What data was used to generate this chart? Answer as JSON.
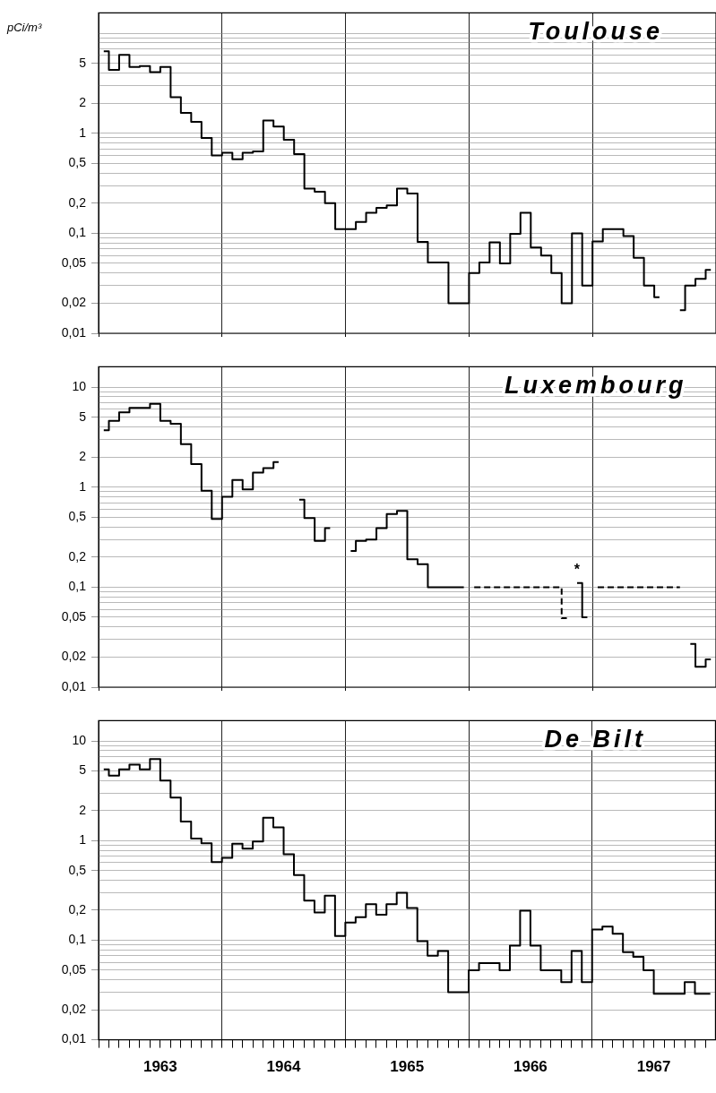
{
  "chart_data": [
    {
      "type": "step",
      "title": "Toulouse",
      "ylabel": "pCi/m³",
      "marker": "none",
      "grid": true,
      "tick_labels": "y",
      "log": true,
      "x": [
        1963.042,
        1963.125,
        1963.208,
        1963.292,
        1963.375,
        1963.458,
        1963.542,
        1963.625,
        1963.708,
        1963.792,
        1963.875,
        1963.958,
        1964.042,
        1964.125,
        1964.208,
        1964.292,
        1964.375,
        1964.458,
        1964.542,
        1964.625,
        1964.708,
        1964.792,
        1964.875,
        1964.958,
        1965.042,
        1965.125,
        1965.208,
        1965.292,
        1965.375,
        1965.458,
        1965.542,
        1965.625,
        1965.708,
        1965.792,
        1965.875,
        1965.958,
        1966.042,
        1966.125,
        1966.208,
        1966.292,
        1966.375,
        1966.458,
        1966.542,
        1966.625,
        1966.708,
        1966.792,
        1966.875,
        1966.958,
        1967.042,
        1967.125,
        1967.208,
        1967.292,
        1967.375,
        1967.458,
        1967.542,
        1967.625,
        1967.708,
        1967.792,
        1967.875,
        1967.958
      ],
      "series": [
        {
          "color": "#000000",
          "values": [
            6.6,
            4.3,
            6.1,
            4.6,
            4.7,
            4.1,
            4.6,
            2.3,
            1.6,
            1.3,
            0.9,
            0.6,
            0.64,
            0.55,
            0.64,
            0.66,
            1.34,
            1.17,
            0.86,
            0.62,
            0.28,
            0.26,
            0.2,
            0.11,
            0.11,
            0.13,
            0.16,
            0.18,
            0.19,
            0.28,
            0.25,
            0.082,
            0.051,
            0.051,
            0.02,
            0.02,
            0.04,
            0.051,
            0.081,
            0.05,
            0.099,
            0.16,
            0.072,
            0.06,
            0.04,
            0.02,
            0.1,
            0.03,
            0.083,
            0.11,
            0.11,
            0.094,
            0.057,
            0.03,
            0.023,
            null,
            0.017,
            0.03,
            0.035,
            0.043
          ]
        }
      ],
      "xlim": [
        1963,
        1968
      ],
      "xticks": [
        {
          "value": 1963,
          "label": null
        },
        {
          "value": 1964,
          "label": null
        },
        {
          "value": 1965,
          "label": null
        },
        {
          "value": 1966,
          "label": null
        },
        {
          "value": 1967,
          "label": null
        }
      ],
      "ylim": [
        0.01,
        16
      ],
      "yticks": [
        {
          "value": 0.01,
          "label": "0,01"
        },
        {
          "value": 0.02,
          "label": "0,02"
        },
        {
          "value": 0.03,
          "label": null
        },
        {
          "value": 0.04,
          "label": null
        },
        {
          "value": 0.05,
          "label": "0,05"
        },
        {
          "value": 0.06,
          "label": null
        },
        {
          "value": 0.07,
          "label": null
        },
        {
          "value": 0.08,
          "label": null
        },
        {
          "value": 0.09,
          "label": null
        },
        {
          "value": 0.1,
          "label": "0,1"
        },
        {
          "value": 0.2,
          "label": "0,2"
        },
        {
          "value": 0.3,
          "label": null
        },
        {
          "value": 0.4,
          "label": null
        },
        {
          "value": 0.5,
          "label": "0,5"
        },
        {
          "value": 0.6,
          "label": null
        },
        {
          "value": 0.7,
          "label": null
        },
        {
          "value": 0.8,
          "label": null
        },
        {
          "value": 0.9,
          "label": null
        },
        1,
        2,
        {
          "value": 3,
          "label": null
        },
        {
          "value": 4,
          "label": null
        },
        5,
        {
          "value": 6,
          "label": null
        },
        {
          "value": 7,
          "label": null
        },
        {
          "value": 8,
          "label": null
        },
        {
          "value": 9,
          "label": null
        },
        {
          "value": 10,
          "label": null
        }
      ]
    },
    {
      "type": "step",
      "title": "Luxembourg",
      "marker": "none",
      "grid": true,
      "tick_labels": "y",
      "log": true,
      "x": [
        1963.042,
        1963.125,
        1963.208,
        1963.292,
        1963.375,
        1963.458,
        1963.542,
        1963.625,
        1963.708,
        1963.792,
        1963.875,
        1963.958,
        1964.042,
        1964.125,
        1964.208,
        1964.292,
        1964.375,
        1964.458,
        1964.542,
        1964.625,
        1964.708,
        1964.792,
        1964.875,
        1964.958,
        1965.042,
        1965.125,
        1965.208,
        1965.292,
        1965.375,
        1965.458,
        1965.542,
        1965.625,
        1965.708,
        1965.792,
        1965.875,
        1965.958,
        1966.042,
        1966.125,
        1966.208,
        1966.292,
        1966.375,
        1966.458,
        1966.542,
        1966.625,
        1966.708,
        1966.792,
        1966.875,
        1966.958,
        1967.042,
        1967.125,
        1967.208,
        1967.292,
        1967.375,
        1967.458,
        1967.542,
        1967.625,
        1967.708,
        1967.792,
        1967.875,
        1967.958
      ],
      "series": [
        {
          "color": "#000000",
          "line_style": "solid",
          "values": [
            3.7,
            4.6,
            5.6,
            6.2,
            6.2,
            6.8,
            4.6,
            4.3,
            2.7,
            1.7,
            0.92,
            0.48,
            0.8,
            1.18,
            0.95,
            1.4,
            1.55,
            1.78,
            null,
            0.75,
            0.49,
            0.29,
            0.39,
            null,
            0.23,
            0.29,
            0.3,
            0.39,
            0.54,
            0.58,
            0.19,
            0.17,
            0.1,
            0.1,
            0.1,
            0.1,
            null,
            null,
            null,
            null,
            null,
            null,
            null,
            null,
            null,
            null,
            0.11,
            0.05,
            null,
            null,
            null,
            null,
            null,
            null,
            null,
            null,
            null,
            0.027,
            0.016,
            0.019
          ]
        },
        {
          "color": "#000000",
          "line_style": "dashed",
          "values": [
            null,
            null,
            null,
            null,
            null,
            null,
            null,
            null,
            null,
            null,
            null,
            null,
            null,
            null,
            null,
            null,
            null,
            null,
            null,
            null,
            null,
            null,
            null,
            null,
            null,
            null,
            null,
            null,
            null,
            null,
            null,
            null,
            null,
            null,
            null,
            null,
            0.1,
            0.1,
            0.1,
            0.1,
            0.1,
            0.1,
            0.1,
            0.1,
            0.1,
            0.049,
            null,
            null,
            0.1,
            0.1,
            0.1,
            0.1,
            0.1,
            0.1,
            0.1,
            0.1,
            0.1,
            null,
            null,
            null
          ]
        }
      ],
      "annotations": [
        {
          "text": "*",
          "x": 1966.875,
          "y": 0.11
        }
      ],
      "xlim": [
        1963,
        1968
      ],
      "xticks": [
        {
          "value": 1963,
          "label": null
        },
        {
          "value": 1964,
          "label": null
        },
        {
          "value": 1965,
          "label": null
        },
        {
          "value": 1966,
          "label": null
        },
        {
          "value": 1967,
          "label": null
        }
      ],
      "ylim": [
        0.01,
        16
      ],
      "yticks": [
        {
          "value": 0.01,
          "label": "0,01"
        },
        {
          "value": 0.02,
          "label": "0,02"
        },
        {
          "value": 0.03,
          "label": null
        },
        {
          "value": 0.04,
          "label": null
        },
        {
          "value": 0.05,
          "label": "0,05"
        },
        {
          "value": 0.06,
          "label": null
        },
        {
          "value": 0.07,
          "label": null
        },
        {
          "value": 0.08,
          "label": null
        },
        {
          "value": 0.09,
          "label": null
        },
        {
          "value": 0.1,
          "label": "0,1"
        },
        {
          "value": 0.2,
          "label": "0,2"
        },
        {
          "value": 0.3,
          "label": null
        },
        {
          "value": 0.4,
          "label": null
        },
        {
          "value": 0.5,
          "label": "0,5"
        },
        {
          "value": 0.6,
          "label": null
        },
        {
          "value": 0.7,
          "label": null
        },
        {
          "value": 0.8,
          "label": null
        },
        {
          "value": 0.9,
          "label": null
        },
        1,
        2,
        {
          "value": 3,
          "label": null
        },
        {
          "value": 4,
          "label": null
        },
        5,
        {
          "value": 6,
          "label": null
        },
        {
          "value": 7,
          "label": null
        },
        {
          "value": 8,
          "label": null
        },
        {
          "value": 9,
          "label": null
        },
        10
      ]
    },
    {
      "type": "step",
      "title": "De Bilt",
      "marker": "none",
      "grid": true,
      "log": true,
      "x": [
        1963.042,
        1963.125,
        1963.208,
        1963.292,
        1963.375,
        1963.458,
        1963.542,
        1963.625,
        1963.708,
        1963.792,
        1963.875,
        1963.958,
        1964.042,
        1964.125,
        1964.208,
        1964.292,
        1964.375,
        1964.458,
        1964.542,
        1964.625,
        1964.708,
        1964.792,
        1964.875,
        1964.958,
        1965.042,
        1965.125,
        1965.208,
        1965.292,
        1965.375,
        1965.458,
        1965.542,
        1965.625,
        1965.708,
        1965.792,
        1965.875,
        1965.958,
        1966.042,
        1966.125,
        1966.208,
        1966.292,
        1966.375,
        1966.458,
        1966.542,
        1966.625,
        1966.708,
        1966.792,
        1966.875,
        1966.958,
        1967.042,
        1967.125,
        1967.208,
        1967.292,
        1967.375,
        1967.458,
        1967.542,
        1967.625,
        1967.708,
        1967.792,
        1967.875,
        1967.958
      ],
      "series": [
        {
          "color": "#000000",
          "values": [
            5.2,
            4.5,
            5.2,
            5.8,
            5.2,
            6.6,
            4.0,
            2.7,
            1.55,
            1.05,
            0.94,
            0.61,
            0.67,
            0.93,
            0.83,
            0.98,
            1.7,
            1.36,
            0.73,
            0.45,
            0.25,
            0.19,
            0.28,
            0.11,
            0.15,
            0.17,
            0.23,
            0.18,
            0.23,
            0.3,
            0.21,
            0.098,
            0.07,
            0.078,
            0.03,
            0.03,
            0.05,
            0.059,
            0.059,
            0.05,
            0.088,
            0.198,
            0.088,
            0.05,
            0.05,
            0.038,
            0.078,
            0.038,
            0.128,
            0.137,
            0.116,
            0.076,
            0.068,
            0.05,
            0.029,
            0.029,
            0.029,
            0.038,
            0.029,
            0.029
          ]
        }
      ],
      "xlim": [
        1963,
        1968
      ],
      "xticks": [
        {
          "value": 1963,
          "label": null
        },
        {
          "value": 1963.083,
          "label": null
        },
        {
          "value": 1963.167,
          "label": null
        },
        {
          "value": 1963.25,
          "label": null
        },
        {
          "value": 1963.333,
          "label": null
        },
        {
          "value": 1963.417,
          "label": null
        },
        {
          "value": 1963.5,
          "label": "1963"
        },
        {
          "value": 1963.583,
          "label": null
        },
        {
          "value": 1963.667,
          "label": null
        },
        {
          "value": 1963.75,
          "label": null
        },
        {
          "value": 1963.833,
          "label": null
        },
        {
          "value": 1963.917,
          "label": null
        },
        {
          "value": 1964,
          "label": null
        },
        {
          "value": 1964.083,
          "label": null
        },
        {
          "value": 1964.167,
          "label": null
        },
        {
          "value": 1964.25,
          "label": null
        },
        {
          "value": 1964.333,
          "label": null
        },
        {
          "value": 1964.417,
          "label": null
        },
        {
          "value": 1964.5,
          "label": "1964"
        },
        {
          "value": 1964.583,
          "label": null
        },
        {
          "value": 1964.667,
          "label": null
        },
        {
          "value": 1964.75,
          "label": null
        },
        {
          "value": 1964.833,
          "label": null
        },
        {
          "value": 1964.917,
          "label": null
        },
        {
          "value": 1965,
          "label": null
        },
        {
          "value": 1965.083,
          "label": null
        },
        {
          "value": 1965.167,
          "label": null
        },
        {
          "value": 1965.25,
          "label": null
        },
        {
          "value": 1965.333,
          "label": null
        },
        {
          "value": 1965.417,
          "label": null
        },
        {
          "value": 1965.5,
          "label": "1965"
        },
        {
          "value": 1965.583,
          "label": null
        },
        {
          "value": 1965.667,
          "label": null
        },
        {
          "value": 1965.75,
          "label": null
        },
        {
          "value": 1965.833,
          "label": null
        },
        {
          "value": 1965.917,
          "label": null
        },
        {
          "value": 1966,
          "label": null
        },
        {
          "value": 1966.083,
          "label": null
        },
        {
          "value": 1966.167,
          "label": null
        },
        {
          "value": 1966.25,
          "label": null
        },
        {
          "value": 1966.333,
          "label": null
        },
        {
          "value": 1966.417,
          "label": null
        },
        {
          "value": 1966.5,
          "label": "1966"
        },
        {
          "value": 1966.583,
          "label": null
        },
        {
          "value": 1966.667,
          "label": null
        },
        {
          "value": 1966.75,
          "label": null
        },
        {
          "value": 1966.833,
          "label": null
        },
        {
          "value": 1966.917,
          "label": null
        },
        {
          "value": 1967,
          "label": null
        },
        {
          "value": 1967.083,
          "label": null
        },
        {
          "value": 1967.167,
          "label": null
        },
        {
          "value": 1967.25,
          "label": null
        },
        {
          "value": 1967.333,
          "label": null
        },
        {
          "value": 1967.417,
          "label": null
        },
        {
          "value": 1967.5,
          "label": "1967"
        },
        {
          "value": 1967.583,
          "label": null
        },
        {
          "value": 1967.667,
          "label": null
        },
        {
          "value": 1967.75,
          "label": null
        },
        {
          "value": 1967.833,
          "label": null
        },
        {
          "value": 1967.917,
          "label": null
        }
      ],
      "ylim": [
        0.01,
        16
      ],
      "yticks": [
        {
          "value": 0.01,
          "label": "0,01"
        },
        {
          "value": 0.02,
          "label": "0,02"
        },
        {
          "value": 0.03,
          "label": null
        },
        {
          "value": 0.04,
          "label": null
        },
        {
          "value": 0.05,
          "label": "0,05"
        },
        {
          "value": 0.06,
          "label": null
        },
        {
          "value": 0.07,
          "label": null
        },
        {
          "value": 0.08,
          "label": null
        },
        {
          "value": 0.09,
          "label": null
        },
        {
          "value": 0.1,
          "label": "0,1"
        },
        {
          "value": 0.2,
          "label": "0,2"
        },
        {
          "value": 0.3,
          "label": null
        },
        {
          "value": 0.4,
          "label": null
        },
        {
          "value": 0.5,
          "label": "0,5"
        },
        {
          "value": 0.6,
          "label": null
        },
        {
          "value": 0.7,
          "label": null
        },
        {
          "value": 0.8,
          "label": null
        },
        {
          "value": 0.9,
          "label": null
        },
        1,
        2,
        {
          "value": 3,
          "label": null
        },
        {
          "value": 4,
          "label": null
        },
        5,
        {
          "value": 6,
          "label": null
        },
        {
          "value": 7,
          "label": null
        },
        {
          "value": 8,
          "label": null
        },
        {
          "value": 9,
          "label": null
        },
        10
      ]
    }
  ]
}
